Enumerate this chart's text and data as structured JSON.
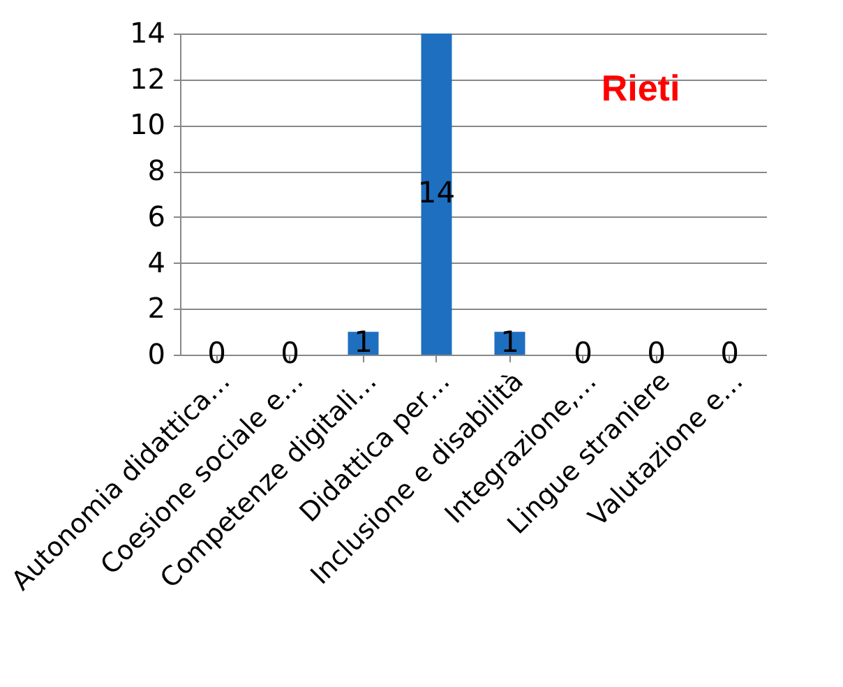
{
  "chart_data": {
    "type": "bar",
    "title": "Rieti",
    "categories": [
      "Autonomia didattica…",
      "Coesione sociale e…",
      "Competenze digitali…",
      "Didattica per…",
      "Inclusione e disabilità",
      "Integrazione,…",
      "Lingue straniere",
      "Valutazione e…"
    ],
    "series": [
      {
        "color": "#1f6fc0",
        "values": [
          0,
          0,
          1,
          14,
          1,
          0,
          0,
          0
        ]
      }
    ],
    "ylim": [
      0,
      14
    ],
    "yticks": [
      0,
      2,
      4,
      6,
      8,
      10,
      12,
      14
    ],
    "grid": "y",
    "data_labels": true
  }
}
